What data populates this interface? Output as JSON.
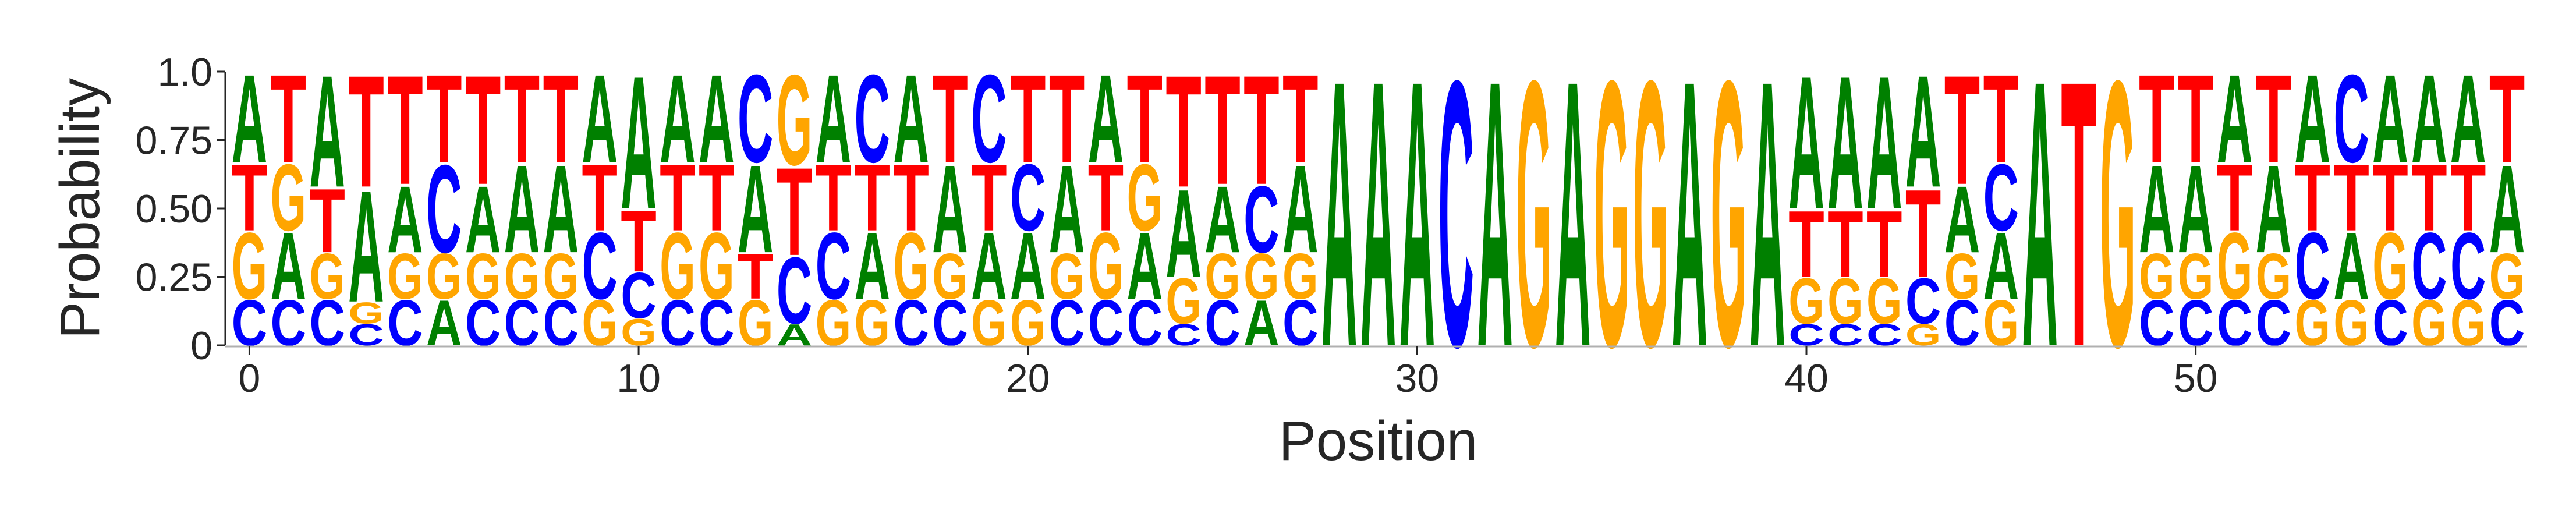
{
  "chart_data": {
    "type": "sequence-logo",
    "xlabel": "Position",
    "ylabel": "Probability",
    "ylim": [
      0,
      1
    ],
    "yticks": [
      "0",
      "0.25",
      "0.50",
      "0.75",
      "1.0"
    ],
    "yticks_values": [
      0,
      0.25,
      0.5,
      0.75,
      1.0
    ],
    "xticks": [
      "0",
      "10",
      "20",
      "30",
      "40",
      "50"
    ],
    "xticks_values": [
      0,
      10,
      20,
      30,
      40,
      50
    ],
    "alphabet": [
      "A",
      "C",
      "G",
      "T"
    ],
    "colors": {
      "A": "#008000",
      "C": "#0000ff",
      "G": "#ffa500",
      "T": "#ff0000"
    },
    "positions": [
      {
        "A": 0.33,
        "C": 0.17,
        "G": 0.25,
        "T": 0.25
      },
      {
        "A": 0.25,
        "C": 0.17,
        "G": 0.25,
        "T": 0.33
      },
      {
        "A": 0.42,
        "C": 0.17,
        "G": 0.17,
        "T": 0.24
      },
      {
        "A": 0.42,
        "C": 0.08,
        "G": 0.08,
        "T": 0.42
      },
      {
        "A": 0.25,
        "C": 0.17,
        "G": 0.17,
        "T": 0.41
      },
      {
        "A": 0.17,
        "C": 0.33,
        "G": 0.17,
        "T": 0.33
      },
      {
        "A": 0.25,
        "C": 0.17,
        "G": 0.17,
        "T": 0.41
      },
      {
        "A": 0.33,
        "C": 0.17,
        "G": 0.17,
        "T": 0.33
      },
      {
        "A": 0.33,
        "C": 0.17,
        "G": 0.17,
        "T": 0.33
      },
      {
        "A": 0.33,
        "C": 0.25,
        "G": 0.17,
        "T": 0.25
      },
      {
        "A": 0.5,
        "C": 0.17,
        "G": 0.1,
        "T": 0.23
      },
      {
        "A": 0.33,
        "C": 0.17,
        "G": 0.25,
        "T": 0.25
      },
      {
        "A": 0.33,
        "C": 0.17,
        "G": 0.25,
        "T": 0.25
      },
      {
        "A": 0.33,
        "C": 0.33,
        "G": 0.17,
        "T": 0.17
      },
      {
        "A": 0.08,
        "C": 0.25,
        "G": 0.34,
        "T": 0.33
      },
      {
        "A": 0.33,
        "C": 0.25,
        "G": 0.17,
        "T": 0.25
      },
      {
        "A": 0.25,
        "C": 0.33,
        "G": 0.17,
        "T": 0.25
      },
      {
        "A": 0.33,
        "C": 0.17,
        "G": 0.25,
        "T": 0.25
      },
      {
        "A": 0.33,
        "C": 0.17,
        "G": 0.17,
        "T": 0.33
      },
      {
        "A": 0.25,
        "C": 0.33,
        "G": 0.17,
        "T": 0.25
      },
      {
        "A": 0.25,
        "C": 0.25,
        "G": 0.17,
        "T": 0.33
      },
      {
        "A": 0.33,
        "C": 0.17,
        "G": 0.17,
        "T": 0.33
      },
      {
        "A": 0.33,
        "C": 0.17,
        "G": 0.25,
        "T": 0.25
      },
      {
        "A": 0.25,
        "C": 0.17,
        "G": 0.25,
        "T": 0.33
      },
      {
        "A": 0.33,
        "C": 0.08,
        "G": 0.17,
        "T": 0.42
      },
      {
        "A": 0.25,
        "C": 0.17,
        "G": 0.17,
        "T": 0.41
      },
      {
        "A": 0.17,
        "C": 0.25,
        "G": 0.17,
        "T": 0.41
      },
      {
        "A": 0.33,
        "C": 0.17,
        "G": 0.17,
        "T": 0.33
      },
      {
        "A": 1.0,
        "C": 0,
        "G": 0,
        "T": 0
      },
      {
        "A": 1.0,
        "C": 0,
        "G": 0,
        "T": 0
      },
      {
        "A": 1.0,
        "C": 0,
        "G": 0,
        "T": 0
      },
      {
        "A": 0,
        "C": 1.0,
        "G": 0,
        "T": 0
      },
      {
        "A": 1.0,
        "C": 0,
        "G": 0,
        "T": 0
      },
      {
        "A": 0,
        "C": 0,
        "G": 1.0,
        "T": 0
      },
      {
        "A": 1.0,
        "C": 0,
        "G": 0,
        "T": 0
      },
      {
        "A": 0,
        "C": 0,
        "G": 1.0,
        "T": 0
      },
      {
        "A": 0,
        "C": 0,
        "G": 1.0,
        "T": 0
      },
      {
        "A": 1.0,
        "C": 0,
        "G": 0,
        "T": 0
      },
      {
        "A": 0,
        "C": 0,
        "G": 1.0,
        "T": 0
      },
      {
        "A": 1.0,
        "C": 0,
        "G": 0,
        "T": 0
      },
      {
        "A": 0.5,
        "C": 0.08,
        "G": 0.17,
        "T": 0.25
      },
      {
        "A": 0.5,
        "C": 0.08,
        "G": 0.17,
        "T": 0.25
      },
      {
        "A": 0.5,
        "C": 0.08,
        "G": 0.17,
        "T": 0.25
      },
      {
        "A": 0.42,
        "C": 0.17,
        "G": 0.08,
        "T": 0.33
      },
      {
        "A": 0.25,
        "C": 0.17,
        "G": 0.17,
        "T": 0.41
      },
      {
        "A": 0.25,
        "C": 0.25,
        "G": 0.17,
        "T": 0.33
      },
      {
        "A": 1.0,
        "C": 0,
        "G": 0,
        "T": 0
      },
      {
        "A": 0,
        "C": 0,
        "G": 0,
        "T": 1.0
      },
      {
        "A": 0,
        "C": 0,
        "G": 1.0,
        "T": 0
      },
      {
        "A": 0.33,
        "C": 0.17,
        "G": 0.17,
        "T": 0.33
      },
      {
        "A": 0.33,
        "C": 0.17,
        "G": 0.17,
        "T": 0.33
      },
      {
        "A": 0.33,
        "C": 0.17,
        "G": 0.25,
        "T": 0.25
      },
      {
        "A": 0.33,
        "C": 0.17,
        "G": 0.17,
        "T": 0.33
      },
      {
        "A": 0.33,
        "C": 0.25,
        "G": 0.17,
        "T": 0.25
      },
      {
        "A": 0.25,
        "C": 0.33,
        "G": 0.17,
        "T": 0.25
      },
      {
        "A": 0.33,
        "C": 0.17,
        "G": 0.25,
        "T": 0.25
      },
      {
        "A": 0.33,
        "C": 0.25,
        "G": 0.17,
        "T": 0.25
      },
      {
        "A": 0.33,
        "C": 0.25,
        "G": 0.17,
        "T": 0.25
      },
      {
        "A": 0.33,
        "C": 0.17,
        "G": 0.17,
        "T": 0.33
      }
    ]
  }
}
